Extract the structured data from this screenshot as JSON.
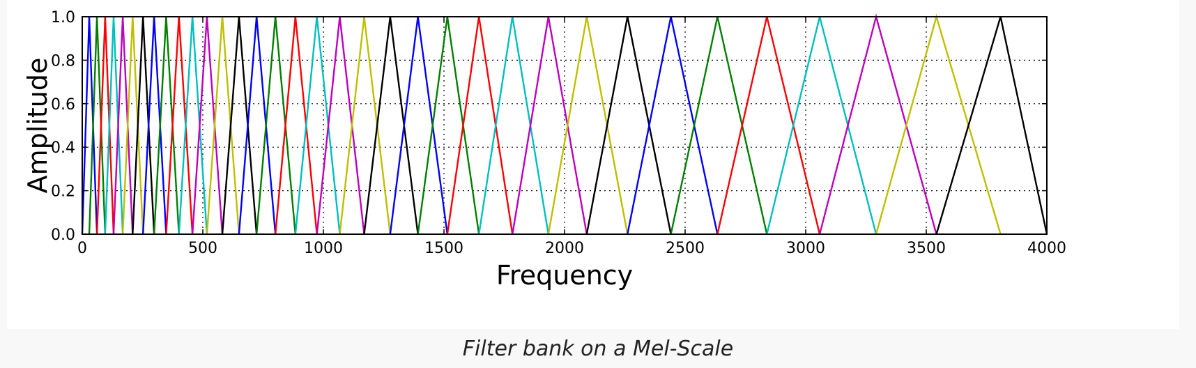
{
  "caption": "Filter bank on a Mel-Scale",
  "chart_data": {
    "type": "line",
    "title": "",
    "xlabel": "Frequency",
    "ylabel": "Amplitude",
    "xlim": [
      0,
      4000
    ],
    "ylim": [
      0,
      1
    ],
    "xticks": [
      "0",
      "500",
      "1000",
      "1500",
      "2000",
      "2500",
      "3000",
      "3500",
      "4000"
    ],
    "yticks": [
      "0.0",
      "0.2",
      "0.4",
      "0.6",
      "0.8",
      "1.0"
    ],
    "grid": true,
    "grid_style": "dotted",
    "series_colors": [
      "#0000ff",
      "#008000",
      "#ff0000",
      "#00bfbf",
      "#bf00bf",
      "#bfbf00",
      "#000000"
    ],
    "filter_peaks": [
      0,
      29,
      61,
      95,
      130,
      168,
      209,
      252,
      298,
      348,
      401,
      457,
      517,
      581,
      650,
      723,
      801,
      884,
      973,
      1068,
      1169,
      1277,
      1392,
      1514,
      1645,
      1784,
      1933,
      2092,
      2261,
      2441,
      2634,
      2839,
      3058,
      3292,
      3542,
      3808,
      4000
    ]
  }
}
